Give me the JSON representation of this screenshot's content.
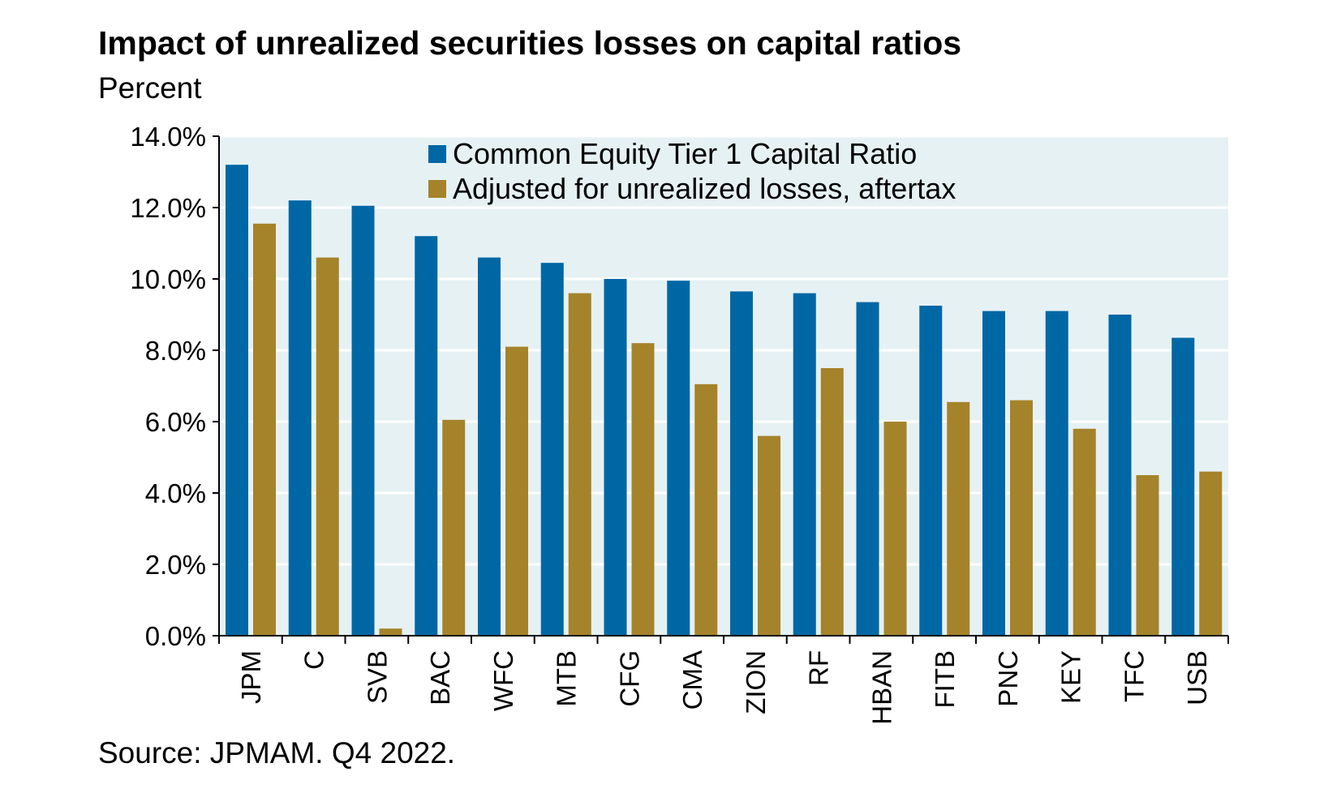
{
  "chart_data": {
    "type": "bar",
    "title": "Impact of unrealized securities losses on capital ratios",
    "subtitle": "Percent",
    "source": "Source: JPMAM. Q4 2022.",
    "categories": [
      "JPM",
      "C",
      "SVB",
      "BAC",
      "WFC",
      "MTB",
      "CFG",
      "CMA",
      "ZION",
      "RF",
      "HBAN",
      "FITB",
      "PNC",
      "KEY",
      "TFC",
      "USB"
    ],
    "series": [
      {
        "name": "Common Equity Tier 1 Capital Ratio",
        "color": "#0067a5",
        "values": [
          13.2,
          12.2,
          12.05,
          11.2,
          10.6,
          10.45,
          10.0,
          9.95,
          9.65,
          9.6,
          9.35,
          9.25,
          9.1,
          9.1,
          9.0,
          8.35
        ]
      },
      {
        "name": "Adjusted for unrealized losses, aftertax",
        "color": "#a5832a",
        "values": [
          11.55,
          10.6,
          0.2,
          6.05,
          8.1,
          9.6,
          8.2,
          7.05,
          5.6,
          7.5,
          6.0,
          6.55,
          6.6,
          5.8,
          4.5,
          4.6
        ]
      }
    ],
    "y_ticks": [
      "0.0%",
      "2.0%",
      "4.0%",
      "6.0%",
      "8.0%",
      "10.0%",
      "12.0%",
      "14.0%"
    ],
    "ylim": [
      0,
      14
    ],
    "grid": true,
    "legend_position": "top-center",
    "plot_background": "#e6f1f4"
  }
}
